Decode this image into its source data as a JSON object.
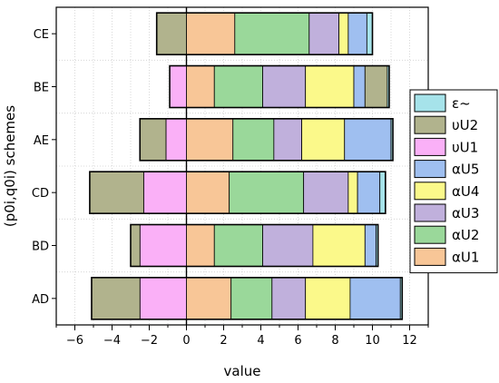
{
  "chart_data": {
    "type": "bar",
    "orientation": "horizontal",
    "stacked": "diverging",
    "categories": [
      "AD",
      "BD",
      "CD",
      "AE",
      "BE",
      "CE"
    ],
    "xlabel": "value",
    "ylabel": "(p0i,q0i) schemes",
    "xlim": [
      -7,
      13
    ],
    "xticks": [
      -6,
      -4,
      -2,
      0,
      2,
      4,
      6,
      8,
      10,
      12
    ],
    "grid": "vertical-dotted",
    "legend_position": "right",
    "series": [
      {
        "name": "αU1",
        "color": "#f8c697",
        "values": [
          2.4,
          1.5,
          2.3,
          2.5,
          1.5,
          2.6
        ]
      },
      {
        "name": "αU2",
        "color": "#9ad89a",
        "values": [
          2.2,
          2.6,
          4.0,
          2.2,
          2.6,
          4.0
        ]
      },
      {
        "name": "αU3",
        "color": "#c0b0dc",
        "values": [
          1.8,
          2.7,
          2.4,
          1.5,
          2.3,
          1.6
        ]
      },
      {
        "name": "αU4",
        "color": "#fbf98a",
        "values": [
          2.4,
          2.8,
          0.5,
          2.3,
          2.6,
          0.5
        ]
      },
      {
        "name": "αU5",
        "color": "#9fbff0",
        "values": [
          2.7,
          0.6,
          1.2,
          2.5,
          0.6,
          1.0
        ]
      },
      {
        "name": "υU1",
        "color": "#fab0f7",
        "values": [
          -2.5,
          -2.5,
          -2.3,
          -1.1,
          -0.9,
          0
        ]
      },
      {
        "name": "υU2",
        "color": "#b1b38d",
        "values": [
          -2.6,
          -0.5,
          -2.9,
          -1.4,
          1.2,
          -1.6
        ]
      },
      {
        "name": "ε~",
        "color": "#a6e3ea",
        "values": [
          0.1,
          0.1,
          0.3,
          0.1,
          0.1,
          0.3
        ]
      }
    ]
  }
}
